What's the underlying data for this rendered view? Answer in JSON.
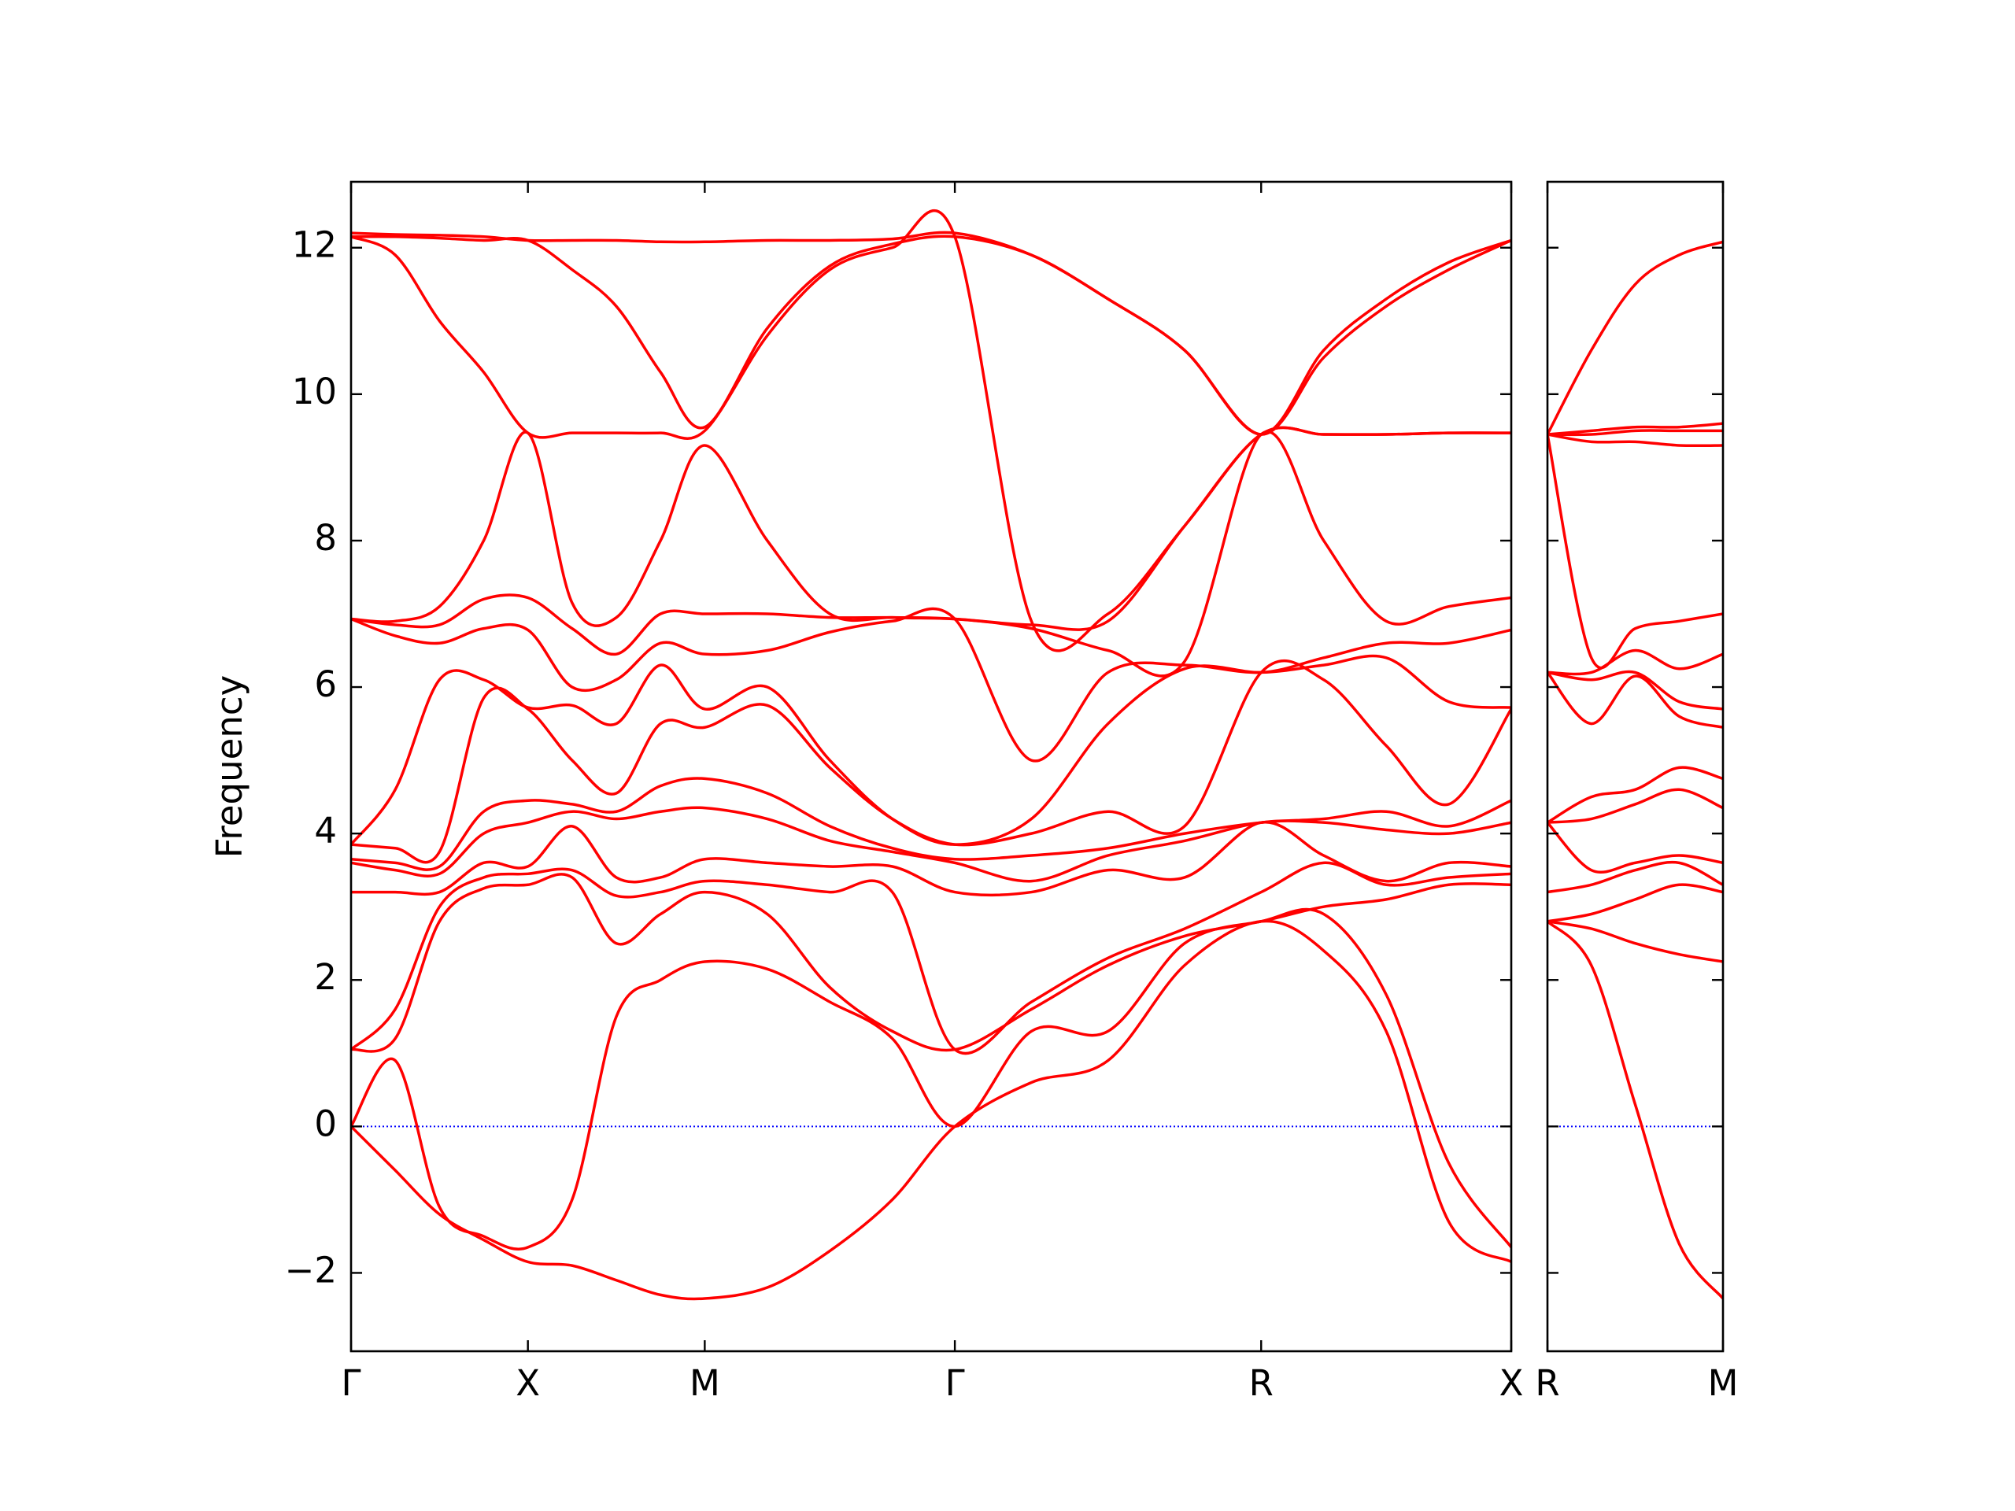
{
  "chart_data": [
    {
      "type": "line",
      "y_label": "Frequency",
      "color": "#ff0000",
      "zero_line_color": "#0000ff",
      "show_ytick_labels": true,
      "xlim": [
        0,
        3.2802
      ],
      "ylim": [
        -3.07,
        12.9
      ],
      "xticks": [
        {
          "value": 0,
          "label": "Γ"
        },
        {
          "value": 0.5,
          "label": "X"
        },
        {
          "value": 1.0,
          "label": "M"
        },
        {
          "value": 1.7071,
          "label": "Γ"
        },
        {
          "value": 2.5731,
          "label": "R"
        },
        {
          "value": 3.2802,
          "label": "X"
        }
      ],
      "yticks": [
        {
          "value": -2,
          "label": "−2"
        },
        0,
        2,
        4,
        6,
        8,
        10,
        12
      ],
      "x": [
        0,
        0.125,
        0.25,
        0.375,
        0.5,
        0.625,
        0.75,
        0.875,
        1.0,
        1.1768,
        1.3536,
        1.5303,
        1.7071,
        1.9236,
        2.1401,
        2.3566,
        2.5731,
        2.7499,
        2.9267,
        3.1034,
        3.2802
      ],
      "series": [
        {
          "values": [
            0,
            -0.6,
            -1.2,
            -1.55,
            -1.85,
            -1.9,
            -2.1,
            -2.3,
            -2.35,
            -2.2,
            -1.7,
            -1.0,
            0,
            0.6,
            0.9,
            2.2,
            2.8,
            2.4,
            1.3,
            -1.3,
            -1.85
          ]
        },
        {
          "values": [
            0,
            0.9,
            -1.1,
            -1.5,
            -1.65,
            -1.0,
            1.5,
            2.0,
            2.25,
            2.15,
            1.7,
            1.2,
            0,
            1.3,
            1.3,
            2.5,
            2.8,
            2.9,
            1.8,
            -0.5,
            -1.65
          ]
        },
        {
          "values": [
            1.05,
            1.2,
            2.8,
            3.25,
            3.3,
            3.4,
            2.5,
            2.9,
            3.2,
            2.9,
            1.9,
            1.3,
            1.05,
            1.6,
            2.2,
            2.6,
            2.8,
            3.0,
            3.1,
            3.3,
            3.3
          ]
        },
        {
          "values": [
            1.05,
            1.6,
            3.0,
            3.4,
            3.45,
            3.5,
            3.15,
            3.2,
            3.35,
            3.3,
            3.2,
            3.2,
            1.05,
            1.7,
            2.3,
            2.7,
            3.2,
            3.6,
            3.3,
            3.4,
            3.45
          ]
        },
        {
          "values": [
            3.2,
            3.2,
            3.2,
            3.6,
            3.55,
            4.1,
            3.4,
            3.4,
            3.65,
            3.6,
            3.55,
            3.55,
            3.2,
            3.2,
            3.5,
            3.4,
            4.15,
            3.7,
            3.35,
            3.6,
            3.55
          ]
        },
        {
          "values": [
            3.6,
            3.5,
            3.45,
            4.0,
            4.15,
            4.3,
            4.2,
            4.3,
            4.35,
            4.2,
            3.9,
            3.75,
            3.6,
            3.35,
            3.7,
            3.9,
            4.15,
            4.15,
            4.05,
            4.0,
            4.15
          ]
        },
        {
          "values": [
            3.65,
            3.6,
            3.55,
            4.3,
            4.45,
            4.4,
            4.3,
            4.65,
            4.75,
            4.55,
            4.1,
            3.8,
            3.65,
            3.7,
            3.8,
            4.0,
            4.15,
            4.2,
            4.3,
            4.1,
            4.45
          ]
        },
        {
          "values": [
            3.85,
            3.8,
            3.75,
            5.85,
            5.7,
            5.0,
            4.55,
            5.5,
            5.45,
            5.75,
            4.9,
            4.2,
            3.85,
            4.0,
            4.3,
            4.1,
            6.2,
            6.1,
            5.2,
            4.4,
            5.7
          ]
        },
        {
          "values": [
            3.85,
            4.6,
            6.1,
            6.1,
            5.72,
            5.75,
            5.5,
            6.3,
            5.7,
            6.0,
            5.0,
            4.2,
            3.85,
            4.2,
            5.5,
            6.25,
            6.2,
            6.3,
            6.4,
            5.8,
            5.72
          ]
        },
        {
          "values": [
            6.93,
            6.7,
            6.6,
            6.8,
            6.78,
            6.0,
            6.1,
            6.6,
            6.45,
            6.5,
            6.75,
            6.9,
            6.93,
            5.0,
            6.2,
            6.3,
            6.2,
            6.4,
            6.6,
            6.6,
            6.78
          ]
        },
        {
          "values": [
            6.93,
            6.85,
            6.85,
            7.2,
            7.22,
            6.8,
            6.45,
            7.0,
            7.0,
            7.0,
            6.95,
            6.95,
            6.93,
            6.8,
            6.5,
            6.35,
            9.45,
            8.0,
            6.9,
            7.1,
            7.22
          ]
        },
        {
          "values": [
            6.93,
            6.9,
            7.1,
            8.0,
            9.47,
            7.15,
            6.95,
            8.0,
            9.3,
            8.0,
            7.0,
            6.95,
            6.93,
            6.85,
            6.9,
            8.2,
            9.45,
            9.45,
            9.45,
            9.47,
            9.47
          ]
        },
        {
          "values": [
            12.15,
            11.9,
            11.0,
            10.3,
            9.47,
            9.47,
            9.47,
            9.47,
            9.5,
            10.8,
            11.7,
            12.0,
            12.15,
            6.9,
            7.0,
            8.2,
            9.45,
            9.45,
            9.45,
            9.47,
            9.47
          ]
        },
        {
          "values": [
            12.15,
            12.15,
            12.13,
            12.1,
            12.1,
            11.7,
            11.2,
            10.3,
            9.55,
            10.9,
            11.75,
            12.05,
            12.15,
            11.9,
            11.3,
            10.6,
            9.45,
            10.5,
            11.2,
            11.7,
            12.1
          ]
        },
        {
          "values": [
            12.2,
            12.18,
            12.17,
            12.15,
            12.1,
            12.1,
            12.1,
            12.08,
            12.08,
            12.1,
            12.1,
            12.12,
            12.2,
            11.9,
            11.3,
            10.6,
            9.45,
            10.6,
            11.3,
            11.8,
            12.1
          ]
        }
      ]
    },
    {
      "type": "line",
      "color": "#ff0000",
      "zero_line_color": "#0000ff",
      "show_ytick_labels": false,
      "xlim": [
        0,
        0.5
      ],
      "ylim": [
        -3.07,
        12.9
      ],
      "xticks": [
        {
          "value": 0,
          "label": "R"
        },
        {
          "value": 0.5,
          "label": "M"
        }
      ],
      "yticks": [
        -2,
        0,
        2,
        4,
        6,
        8,
        10,
        12
      ],
      "x": [
        0,
        0.125,
        0.25,
        0.375,
        0.5
      ],
      "series": [
        {
          "values": [
            2.8,
            2.2,
            0.3,
            -1.6,
            -2.35
          ]
        },
        {
          "values": [
            2.8,
            2.7,
            2.5,
            2.35,
            2.25
          ]
        },
        {
          "values": [
            2.8,
            2.9,
            3.1,
            3.3,
            3.2
          ]
        },
        {
          "values": [
            3.2,
            3.3,
            3.5,
            3.6,
            3.3
          ]
        },
        {
          "values": [
            4.15,
            3.5,
            3.6,
            3.7,
            3.6
          ]
        },
        {
          "values": [
            4.15,
            4.2,
            4.4,
            4.6,
            4.35
          ]
        },
        {
          "values": [
            4.15,
            4.5,
            4.6,
            4.9,
            4.75
          ]
        },
        {
          "values": [
            6.2,
            5.5,
            6.15,
            5.6,
            5.45
          ]
        },
        {
          "values": [
            6.2,
            6.1,
            6.2,
            5.8,
            5.7
          ]
        },
        {
          "values": [
            6.2,
            6.2,
            6.5,
            6.25,
            6.45
          ]
        },
        {
          "values": [
            9.45,
            6.4,
            6.8,
            6.9,
            7.0
          ]
        },
        {
          "values": [
            9.45,
            9.35,
            9.35,
            9.3,
            9.3
          ]
        },
        {
          "values": [
            9.45,
            9.45,
            9.5,
            9.5,
            9.5
          ]
        },
        {
          "values": [
            9.45,
            9.5,
            9.55,
            9.55,
            9.6
          ]
        },
        {
          "values": [
            9.45,
            10.6,
            11.5,
            11.9,
            12.08
          ]
        }
      ]
    }
  ]
}
